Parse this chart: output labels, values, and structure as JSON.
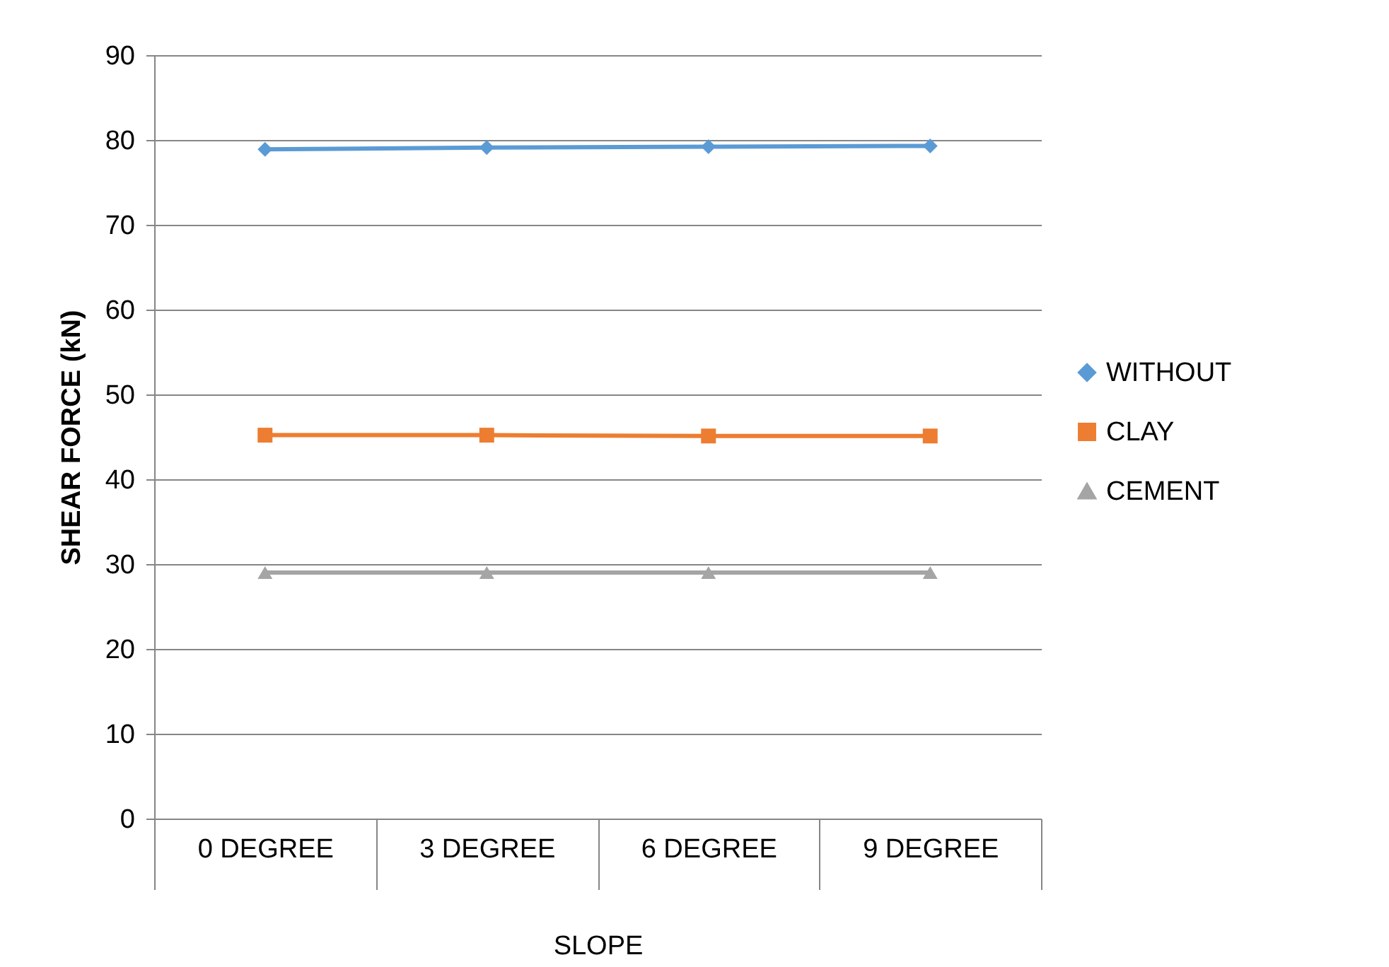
{
  "chart_data": {
    "type": "line",
    "xlabel": "SLOPE",
    "ylabel": "SHEAR FORCE (kN)",
    "categories": [
      "0 DEGREE",
      "3 DEGREE",
      "6 DEGREE",
      "9 DEGREE"
    ],
    "series": [
      {
        "name": "WITHOUT",
        "color": "#5b9bd5",
        "marker": "diamond",
        "values": [
          78.9,
          79.1,
          79.2,
          79.3
        ]
      },
      {
        "name": "CLAY",
        "color": "#ed7d31",
        "marker": "square",
        "values": [
          45.2,
          45.2,
          45.1,
          45.1
        ]
      },
      {
        "name": "CEMENT",
        "color": "#a5a5a5",
        "marker": "triangle",
        "values": [
          29,
          29,
          29,
          29
        ]
      }
    ],
    "ylim": [
      0,
      90
    ],
    "yticks": [
      0,
      10,
      20,
      30,
      40,
      50,
      60,
      70,
      80,
      90
    ],
    "grid": "y",
    "legend": "right",
    "line_style": "solid"
  }
}
